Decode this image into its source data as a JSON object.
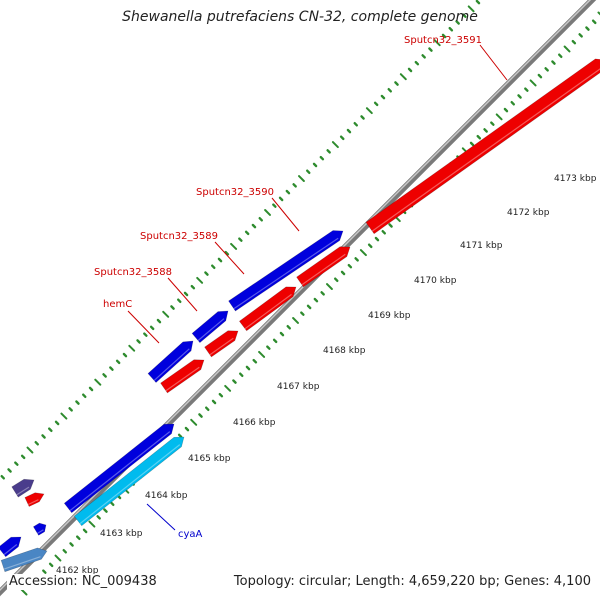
{
  "title": "Shewanella putrefaciens CN-32, complete genome",
  "footer": {
    "accession": "Accession: NC_009438",
    "summary": "Topology: circular; Length: 4,659,220 bp; Genes: 4,100"
  },
  "colors": {
    "background": "#ffffff",
    "backbone": "#8c8c8c",
    "tick_green": "#2e8b2e",
    "forward_gene": "#0000dd",
    "reverse_gene": "#ee0000",
    "light_gene": "#00bbee",
    "steel_gene": "#4a86c4",
    "purple_gene": "#4a3c8c",
    "red_label": "#cc0000",
    "blue_label": "#0000cc"
  },
  "gene_labels": [
    {
      "key": "sputcn32_3591",
      "text": "Sputcn32_3591",
      "color": "red"
    },
    {
      "key": "sputcn32_3590",
      "text": "Sputcn32_3590",
      "color": "red"
    },
    {
      "key": "sputcn32_3589",
      "text": "Sputcn32_3589",
      "color": "red"
    },
    {
      "key": "sputcn32_3588",
      "text": "Sputcn32_3588",
      "color": "red"
    },
    {
      "key": "hemc",
      "text": "hemC",
      "color": "red"
    },
    {
      "key": "cyaa",
      "text": "cyaA",
      "color": "blue"
    }
  ],
  "kbp_labels": [
    "4162 kbp",
    "4163 kbp",
    "4164 kbp",
    "4165 kbp",
    "4166 kbp",
    "4167 kbp",
    "4168 kbp",
    "4169 kbp",
    "4170 kbp",
    "4171 kbp",
    "4172 kbp",
    "4173 kbp"
  ]
}
